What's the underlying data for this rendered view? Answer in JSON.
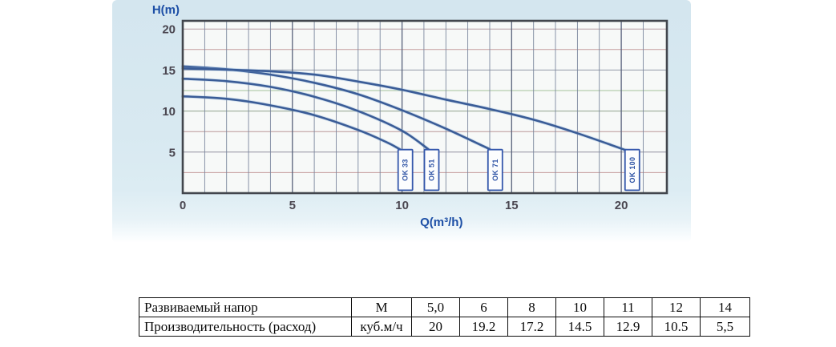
{
  "chart": {
    "ylabel": "H(m)",
    "xlabel": "Q(m³/h)"
  },
  "chart_data": {
    "type": "line",
    "xlabel": "Q(m³/h)",
    "ylabel": "H(m)",
    "xlim": [
      0,
      22
    ],
    "ylim": [
      0,
      21
    ],
    "x_ticks": [
      0,
      5,
      10,
      15,
      20
    ],
    "y_ticks": [
      5,
      10,
      15,
      20
    ],
    "grid": true,
    "x_grid_step": 1,
    "y_grid_step": 2.5,
    "series": [
      {
        "name": "OK 33",
        "points": [
          [
            0,
            11.8
          ],
          [
            2,
            11.5
          ],
          [
            4,
            10.7
          ],
          [
            6,
            9.5
          ],
          [
            8,
            7.7
          ],
          [
            9.3,
            6.2
          ],
          [
            9.9,
            5.35
          ]
        ]
      },
      {
        "name": "OK 51",
        "points": [
          [
            0,
            13.95
          ],
          [
            2,
            13.65
          ],
          [
            4,
            12.95
          ],
          [
            6,
            11.75
          ],
          [
            8,
            10.0
          ],
          [
            10,
            7.6
          ],
          [
            11.2,
            5.35
          ]
        ]
      },
      {
        "name": "OK 71",
        "points": [
          [
            0,
            15.45
          ],
          [
            2,
            15.1
          ],
          [
            4,
            14.45
          ],
          [
            6,
            13.45
          ],
          [
            8,
            12.05
          ],
          [
            10,
            10.1
          ],
          [
            12,
            7.85
          ],
          [
            14,
            5.35
          ]
        ]
      },
      {
        "name": "OK 100",
        "points": [
          [
            0,
            15.2
          ],
          [
            2,
            15.05
          ],
          [
            4,
            14.85
          ],
          [
            6,
            14.45
          ],
          [
            8,
            13.6
          ],
          [
            10,
            12.6
          ],
          [
            12,
            11.4
          ],
          [
            14,
            10.25
          ],
          [
            16,
            8.95
          ],
          [
            18,
            7.3
          ],
          [
            20.3,
            5.15
          ]
        ]
      }
    ],
    "curve_labels": [
      {
        "text": "OK 33",
        "q": 10.15
      },
      {
        "text": "OK 51",
        "q": 11.35
      },
      {
        "text": "OK 71",
        "q": 14.25
      },
      {
        "text": "OK 100",
        "q": 20.5
      }
    ]
  },
  "table": {
    "rows": [
      {
        "label": "Развиваемый напор",
        "unit": "М",
        "values": [
          "5,0",
          "6",
          "8",
          "10",
          "11",
          "12",
          "14"
        ]
      },
      {
        "label": "Производительность (расход)",
        "unit": "куб.м/ч",
        "values": [
          "20",
          "19.2",
          "17.2",
          "14.5",
          "12.9",
          "10.5",
          "5,5"
        ]
      }
    ]
  },
  "colors": {
    "axis_label_blue": "#1d4fa6",
    "curve_blue": "#3a5c97",
    "curve_halo": "#8fb2dc",
    "box_border_blue": "#3558ac",
    "box_text_blue": "#2b51a4",
    "plot_border": "#42464d",
    "plot_bg": "#f7f9f8",
    "tick_text": "#4a4650",
    "vgrid_minor": "#7b879e",
    "vgrid_major": "#57617a",
    "hgrid": [
      "#c39898",
      "#91909d",
      "#bb9898",
      "#90a28c",
      "#a6c29c",
      "#949aa8",
      "#c59d9d",
      "#b49aa0"
    ]
  }
}
